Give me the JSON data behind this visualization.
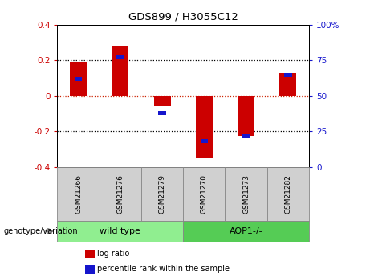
{
  "title": "GDS899 / H3055C12",
  "samples": [
    "GSM21266",
    "GSM21276",
    "GSM21279",
    "GSM21270",
    "GSM21273",
    "GSM21282"
  ],
  "log_ratios": [
    0.19,
    0.285,
    -0.055,
    -0.345,
    -0.225,
    0.13
  ],
  "percentile_ranks": [
    62,
    77,
    38,
    18,
    22,
    65
  ],
  "groups": [
    {
      "label": "wild type",
      "indices": [
        0,
        1,
        2
      ]
    },
    {
      "label": "AQP1-/-",
      "indices": [
        3,
        4,
        5
      ]
    }
  ],
  "bar_color_red": "#cc0000",
  "bar_color_blue": "#1515cc",
  "bar_width": 0.4,
  "blue_bar_width": 0.18,
  "ylim": [
    -0.4,
    0.4
  ],
  "y_ticks_left": [
    -0.4,
    -0.2,
    0.0,
    0.2,
    0.4
  ],
  "y_ticks_right": [
    0,
    25,
    50,
    75,
    100
  ],
  "dotted_line_color": "black",
  "zero_line_color": "#cc2200",
  "group_label_x": "genotype/variation",
  "legend_items": [
    {
      "label": "log ratio",
      "color": "#cc0000"
    },
    {
      "label": "percentile rank within the sample",
      "color": "#1515cc"
    }
  ],
  "sample_box_color": "#d0d0d0",
  "group_box_color_1": "#90ee90",
  "group_box_color_2": "#55cc55"
}
